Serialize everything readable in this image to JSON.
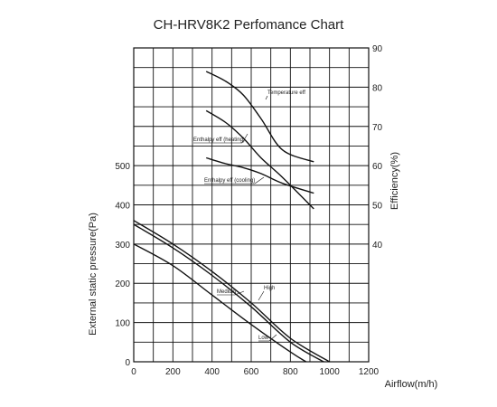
{
  "chart_data": {
    "type": "line",
    "title": "CH-HRV8K2  Perfomance Chart",
    "xlabel": "Airflow(m/h)",
    "ylabel_left": "External static pressure(Pa)",
    "ylabel_right": "Efficiency(%)",
    "xlim": [
      0,
      1200
    ],
    "ylim_left": [
      0,
      500
    ],
    "ylim_right": [
      40,
      90
    ],
    "x_ticks": [
      "0",
      "200",
      "400",
      "600",
      "800",
      "1000",
      "1200"
    ],
    "y_left_ticks": [
      "0",
      "100",
      "200",
      "300",
      "400",
      "500"
    ],
    "y_right_ticks": [
      "40",
      "50",
      "60",
      "70",
      "80",
      "90"
    ],
    "grid": true,
    "series": [
      {
        "name": "High",
        "axis": "left",
        "points": [
          [
            0,
            360
          ],
          [
            200,
            300
          ],
          [
            400,
            230
          ],
          [
            600,
            150
          ],
          [
            800,
            60
          ],
          [
            1000,
            0
          ]
        ]
      },
      {
        "name": "Medium",
        "axis": "left",
        "points": [
          [
            0,
            350
          ],
          [
            200,
            290
          ],
          [
            400,
            220
          ],
          [
            600,
            140
          ],
          [
            800,
            50
          ],
          [
            970,
            0
          ]
        ]
      },
      {
        "name": "Low",
        "axis": "left",
        "points": [
          [
            0,
            300
          ],
          [
            200,
            245
          ],
          [
            400,
            170
          ],
          [
            600,
            95
          ],
          [
            800,
            25
          ],
          [
            880,
            0
          ]
        ]
      },
      {
        "name": "Temperature eff",
        "axis": "right",
        "points": [
          [
            370,
            84
          ],
          [
            470,
            81.5
          ],
          [
            560,
            78
          ],
          [
            650,
            72
          ],
          [
            760,
            64
          ],
          [
            920,
            61
          ]
        ]
      },
      {
        "name": "Enthalpy eff (heating)",
        "axis": "right",
        "points": [
          [
            370,
            74
          ],
          [
            470,
            71
          ],
          [
            560,
            67
          ],
          [
            650,
            62
          ],
          [
            760,
            57
          ],
          [
            920,
            49
          ]
        ]
      },
      {
        "name": "Enthalpy eff (cooling)",
        "axis": "right",
        "points": [
          [
            370,
            62
          ],
          [
            470,
            60.5
          ],
          [
            560,
            59.5
          ],
          [
            650,
            58
          ],
          [
            760,
            55.5
          ],
          [
            920,
            53
          ]
        ]
      }
    ],
    "annotations": [
      "Temperature eff",
      "Enthalpy eff (heating)",
      "Enthalpy eff (cooling)",
      "Medium",
      "High",
      "Low"
    ]
  }
}
